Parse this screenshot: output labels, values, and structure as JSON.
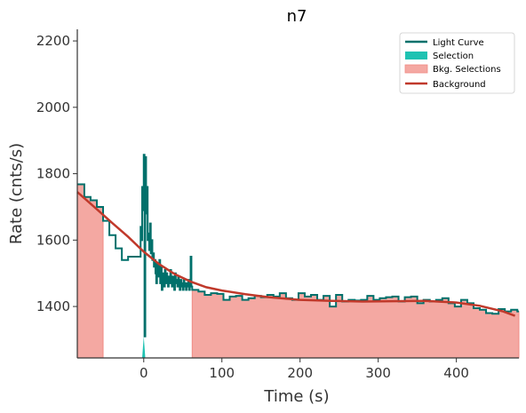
{
  "chart_data": {
    "type": "line",
    "title": "n7",
    "xlabel": "Time (s)",
    "ylabel": "Rate (cnts/s)",
    "xlim": [
      -85,
      480
    ],
    "ylim": [
      1245,
      2235
    ],
    "xticks": [
      0,
      100,
      200,
      300,
      400
    ],
    "yticks": [
      1400,
      1600,
      1800,
      2000,
      2200
    ],
    "grid": false,
    "legend_position": "top-right",
    "legend": [
      "Light Curve",
      "Selection",
      "Bkg. Selections",
      "Background"
    ],
    "colors": {
      "light_curve": "#00706b",
      "selection": "#1fc2b2",
      "bkg_selection_fill": "#f4a8a2",
      "bkg_selection_edge": "#f08c85",
      "background": "#c0392b"
    },
    "series": [
      {
        "name": "Light Curve",
        "style": "step",
        "x": [
          -85,
          -76,
          -68,
          -60,
          -52,
          -44,
          -36,
          -28,
          -20,
          -12,
          -4,
          -3,
          -2,
          -1,
          0,
          1,
          2,
          3,
          4,
          5,
          6,
          7,
          8,
          9,
          10,
          11,
          12,
          13,
          14,
          15,
          16,
          17,
          18,
          19,
          20,
          21,
          22,
          23,
          24,
          25,
          26,
          27,
          28,
          29,
          30,
          31,
          32,
          33,
          34,
          35,
          36,
          37,
          38,
          39,
          40,
          41,
          42,
          43,
          44,
          45,
          46,
          47,
          48,
          49,
          50,
          51,
          52,
          53,
          54,
          55,
          56,
          57,
          58,
          59,
          60,
          61,
          62,
          70,
          78,
          86,
          94,
          102,
          110,
          118,
          126,
          134,
          142,
          150,
          158,
          166,
          174,
          182,
          190,
          198,
          206,
          214,
          222,
          230,
          238,
          246,
          254,
          262,
          270,
          278,
          286,
          294,
          302,
          310,
          318,
          326,
          334,
          342,
          350,
          358,
          366,
          374,
          382,
          390,
          398,
          406,
          414,
          422,
          430,
          438,
          446,
          454,
          462,
          470,
          478
        ],
        "y": [
          1768,
          1730,
          1720,
          1700,
          1658,
          1615,
          1575,
          1540,
          1550,
          1550,
          1640,
          1600,
          1760,
          1690,
          1857,
          1310,
          1850,
          1680,
          1760,
          1600,
          1620,
          1570,
          1650,
          1560,
          1600,
          1540,
          1560,
          1520,
          1540,
          1500,
          1470,
          1530,
          1510,
          1490,
          1540,
          1470,
          1520,
          1450,
          1500,
          1480,
          1460,
          1510,
          1470,
          1500,
          1480,
          1460,
          1490,
          1470,
          1510,
          1480,
          1460,
          1490,
          1470,
          1450,
          1500,
          1470,
          1480,
          1460,
          1490,
          1470,
          1450,
          1480,
          1460,
          1470,
          1450,
          1480,
          1460,
          1470,
          1450,
          1470,
          1460,
          1480,
          1450,
          1470,
          1550,
          1460,
          1450,
          1445,
          1435,
          1440,
          1438,
          1420,
          1430,
          1432,
          1420,
          1425,
          1432,
          1428,
          1435,
          1430,
          1440,
          1425,
          1420,
          1440,
          1430,
          1435,
          1420,
          1432,
          1400,
          1435,
          1415,
          1420,
          1418,
          1420,
          1432,
          1420,
          1425,
          1428,
          1430,
          1415,
          1428,
          1430,
          1410,
          1420,
          1415,
          1420,
          1425,
          1410,
          1400,
          1420,
          1410,
          1395,
          1390,
          1380,
          1378,
          1392,
          1385,
          1390,
          1385
        ]
      },
      {
        "name": "Selection",
        "style": "step-fill",
        "x": [
          -2,
          0,
          2
        ],
        "y": [
          1245,
          1310,
          1245
        ]
      },
      {
        "name": "Bkg. Selections",
        "style": "step-fill",
        "ranges": [
          [
            -85,
            -52
          ],
          [
            62,
            480
          ]
        ]
      },
      {
        "name": "Background",
        "style": "line",
        "x": [
          -85,
          -60,
          -40,
          -20,
          0,
          20,
          40,
          60,
          80,
          100,
          130,
          160,
          200,
          240,
          280,
          320,
          360,
          400,
          430,
          460,
          475
        ],
        "y": [
          1745,
          1693,
          1651,
          1610,
          1565,
          1527,
          1497,
          1475,
          1458,
          1448,
          1437,
          1428,
          1420,
          1417,
          1415,
          1416,
          1417,
          1412,
          1402,
          1385,
          1372
        ]
      }
    ]
  }
}
